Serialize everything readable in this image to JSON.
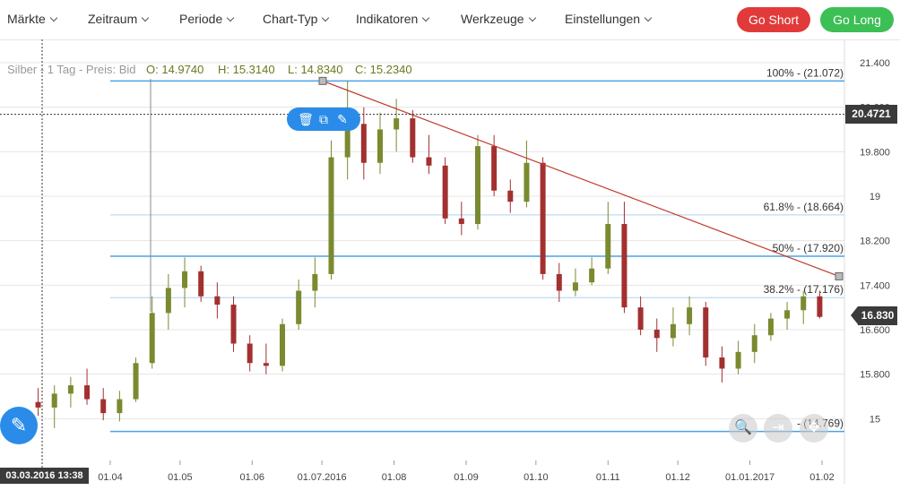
{
  "menu": {
    "items": [
      {
        "label": "Märkte"
      },
      {
        "label": "Zeitraum"
      },
      {
        "label": "Periode"
      },
      {
        "label": "Chart-Typ"
      },
      {
        "label": "Indikatoren"
      },
      {
        "label": "Werkzeuge"
      },
      {
        "label": "Einstellungen"
      }
    ],
    "go_short": "Go Short",
    "go_long": "Go Long"
  },
  "colors": {
    "short": "#e23a3a",
    "long": "#3cbf55",
    "accent": "#2a8ce8",
    "up": "#7a8a2f",
    "down": "#a33030"
  },
  "info": {
    "instrument": "Silber - 1 Tag - Preis: Bid",
    "open": "O: 14.9740",
    "high": "H: 15.3140",
    "low": "L: 14.8340",
    "close": "C: 15.2340"
  },
  "crosshair_price": "20.4721",
  "current_price": "16.830",
  "crosshair_date": "03.03.2016 13:38",
  "chart_data": {
    "type": "candlestick",
    "y_ticks": [
      "21.400",
      "20.600",
      "19.800",
      "19",
      "18.200",
      "17.400",
      "16.600",
      "15.800",
      "15"
    ],
    "x_ticks": [
      "01.04",
      "01.05",
      "01.06",
      "01.07.2016",
      "01.08",
      "01.09",
      "01.10",
      "01.11",
      "01.12",
      "01.01.2017",
      "01.02"
    ],
    "ylim": [
      14.7,
      21.6
    ],
    "fibonacci": [
      {
        "label": "100% - (21.072)",
        "value": 21.072
      },
      {
        "label": "61.8% - (18.664)",
        "value": 18.664
      },
      {
        "label": "50% - (17.920)",
        "value": 17.92
      },
      {
        "label": "38.2% - (17.176)",
        "value": 17.176
      },
      {
        "label": "- (14.769)",
        "value": 14.769
      }
    ],
    "trendline": {
      "from": {
        "date": "2016-07-04",
        "price": 21.072
      },
      "to": {
        "date": "2017-02-24",
        "price": 17.56
      }
    },
    "crosshair": {
      "date": "2016-03-03",
      "price": 20.4721
    },
    "candles": [
      {
        "d": "2016-03-01",
        "o": 15.3,
        "h": 15.55,
        "l": 15.05,
        "c": 15.2
      },
      {
        "d": "2016-03-08",
        "o": 15.2,
        "h": 15.6,
        "l": 14.83,
        "c": 15.45
      },
      {
        "d": "2016-03-15",
        "o": 15.45,
        "h": 15.75,
        "l": 15.2,
        "c": 15.6
      },
      {
        "d": "2016-03-22",
        "o": 15.6,
        "h": 15.9,
        "l": 15.25,
        "c": 15.35
      },
      {
        "d": "2016-03-29",
        "o": 15.35,
        "h": 15.55,
        "l": 14.97,
        "c": 15.1
      },
      {
        "d": "2016-04-05",
        "o": 15.1,
        "h": 15.5,
        "l": 14.95,
        "c": 15.35
      },
      {
        "d": "2016-04-12",
        "o": 15.35,
        "h": 16.1,
        "l": 15.3,
        "c": 16.0
      },
      {
        "d": "2016-04-19",
        "o": 16.0,
        "h": 17.2,
        "l": 15.9,
        "c": 16.9
      },
      {
        "d": "2016-04-26",
        "o": 16.9,
        "h": 17.6,
        "l": 16.6,
        "c": 17.35
      },
      {
        "d": "2016-05-03",
        "o": 17.35,
        "h": 17.9,
        "l": 17.0,
        "c": 17.65
      },
      {
        "d": "2016-05-10",
        "o": 17.65,
        "h": 17.75,
        "l": 17.1,
        "c": 17.2
      },
      {
        "d": "2016-05-17",
        "o": 17.2,
        "h": 17.45,
        "l": 16.8,
        "c": 17.05
      },
      {
        "d": "2016-05-24",
        "o": 17.05,
        "h": 17.2,
        "l": 16.2,
        "c": 16.35
      },
      {
        "d": "2016-05-31",
        "o": 16.35,
        "h": 16.5,
        "l": 15.85,
        "c": 16.0
      },
      {
        "d": "2016-06-07",
        "o": 16.0,
        "h": 16.35,
        "l": 15.8,
        "c": 15.95
      },
      {
        "d": "2016-06-14",
        "o": 15.95,
        "h": 16.8,
        "l": 15.85,
        "c": 16.7
      },
      {
        "d": "2016-06-21",
        "o": 16.7,
        "h": 17.5,
        "l": 16.6,
        "c": 17.3
      },
      {
        "d": "2016-06-28",
        "o": 17.3,
        "h": 17.9,
        "l": 17.0,
        "c": 17.6
      },
      {
        "d": "2016-07-05",
        "o": 17.6,
        "h": 20.0,
        "l": 17.5,
        "c": 19.7
      },
      {
        "d": "2016-07-12",
        "o": 19.7,
        "h": 21.07,
        "l": 19.3,
        "c": 20.3
      },
      {
        "d": "2016-07-19",
        "o": 20.3,
        "h": 20.6,
        "l": 19.3,
        "c": 19.6
      },
      {
        "d": "2016-07-26",
        "o": 19.6,
        "h": 20.5,
        "l": 19.4,
        "c": 20.2
      },
      {
        "d": "2016-08-02",
        "o": 20.2,
        "h": 20.75,
        "l": 19.8,
        "c": 20.4
      },
      {
        "d": "2016-08-09",
        "o": 20.4,
        "h": 20.55,
        "l": 19.6,
        "c": 19.7
      },
      {
        "d": "2016-08-16",
        "o": 19.7,
        "h": 20.1,
        "l": 19.4,
        "c": 19.55
      },
      {
        "d": "2016-08-23",
        "o": 19.55,
        "h": 19.7,
        "l": 18.5,
        "c": 18.6
      },
      {
        "d": "2016-08-30",
        "o": 18.6,
        "h": 18.9,
        "l": 18.3,
        "c": 18.5
      },
      {
        "d": "2016-09-06",
        "o": 18.5,
        "h": 20.1,
        "l": 18.4,
        "c": 19.9
      },
      {
        "d": "2016-09-13",
        "o": 19.9,
        "h": 20.1,
        "l": 19.0,
        "c": 19.1
      },
      {
        "d": "2016-09-20",
        "o": 19.1,
        "h": 19.3,
        "l": 18.7,
        "c": 18.9
      },
      {
        "d": "2016-09-27",
        "o": 18.9,
        "h": 20.0,
        "l": 18.8,
        "c": 19.6
      },
      {
        "d": "2016-10-04",
        "o": 19.6,
        "h": 19.7,
        "l": 17.5,
        "c": 17.6
      },
      {
        "d": "2016-10-11",
        "o": 17.6,
        "h": 17.8,
        "l": 17.1,
        "c": 17.3
      },
      {
        "d": "2016-10-18",
        "o": 17.3,
        "h": 17.7,
        "l": 17.2,
        "c": 17.45
      },
      {
        "d": "2016-10-25",
        "o": 17.45,
        "h": 17.9,
        "l": 17.4,
        "c": 17.7
      },
      {
        "d": "2016-11-01",
        "o": 17.7,
        "h": 18.9,
        "l": 17.6,
        "c": 18.5
      },
      {
        "d": "2016-11-08",
        "o": 18.5,
        "h": 18.9,
        "l": 16.9,
        "c": 17.0
      },
      {
        "d": "2016-11-15",
        "o": 17.0,
        "h": 17.2,
        "l": 16.5,
        "c": 16.6
      },
      {
        "d": "2016-11-22",
        "o": 16.6,
        "h": 16.8,
        "l": 16.2,
        "c": 16.45
      },
      {
        "d": "2016-11-29",
        "o": 16.45,
        "h": 17.0,
        "l": 16.3,
        "c": 16.7
      },
      {
        "d": "2016-12-06",
        "o": 16.7,
        "h": 17.2,
        "l": 16.5,
        "c": 17.0
      },
      {
        "d": "2016-12-13",
        "o": 17.0,
        "h": 17.1,
        "l": 15.95,
        "c": 16.1
      },
      {
        "d": "2016-12-20",
        "o": 16.1,
        "h": 16.3,
        "l": 15.65,
        "c": 15.9
      },
      {
        "d": "2016-12-27",
        "o": 15.9,
        "h": 16.4,
        "l": 15.8,
        "c": 16.2
      },
      {
        "d": "2017-01-03",
        "o": 16.2,
        "h": 16.7,
        "l": 16.0,
        "c": 16.5
      },
      {
        "d": "2017-01-10",
        "o": 16.5,
        "h": 16.9,
        "l": 16.4,
        "c": 16.8
      },
      {
        "d": "2017-01-17",
        "o": 16.8,
        "h": 17.1,
        "l": 16.6,
        "c": 16.95
      },
      {
        "d": "2017-01-24",
        "o": 16.95,
        "h": 17.3,
        "l": 16.7,
        "c": 17.2
      },
      {
        "d": "2017-01-31",
        "o": 17.2,
        "h": 17.3,
        "l": 16.8,
        "c": 16.83
      }
    ]
  }
}
